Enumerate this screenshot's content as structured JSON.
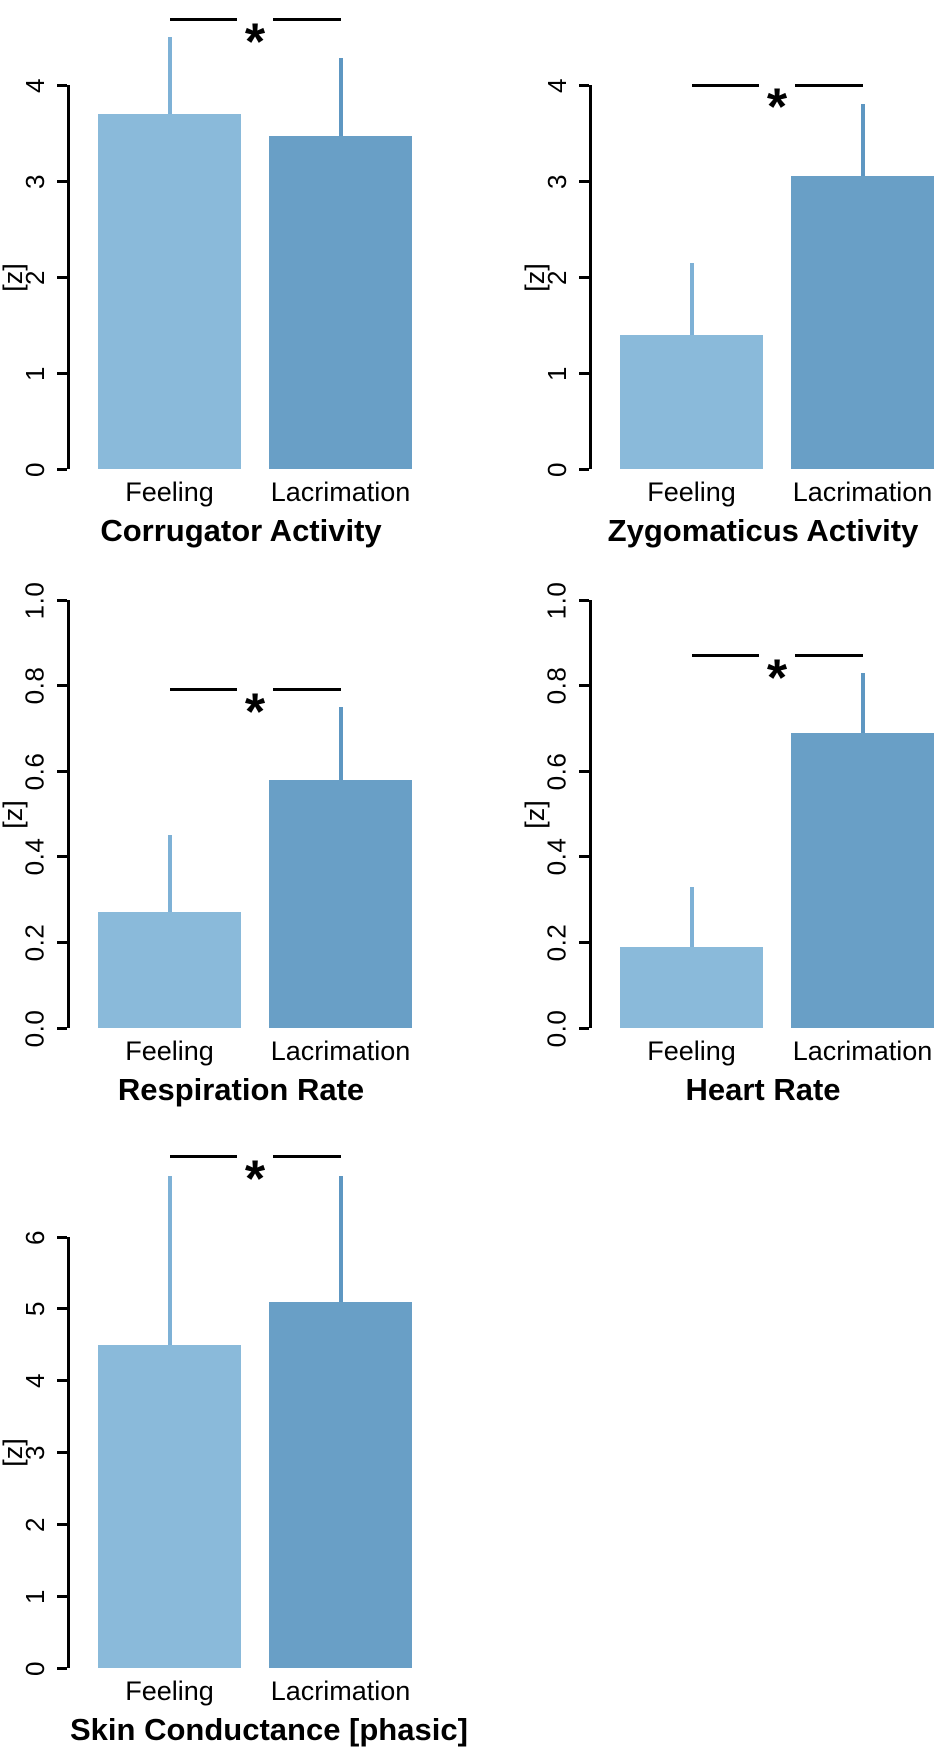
{
  "palette": {
    "feeling_bar": "#8ABADA",
    "lacrimation_bar": "#699FC6",
    "feeling_error": "#7EB1D6",
    "lacrimation_error": "#5E97C2",
    "axis": "#000000"
  },
  "ylabel": "[z]",
  "chart_data": [
    {
      "type": "bar",
      "title": "Corrugator Activity",
      "ylabel": "[z]",
      "categories": [
        "Feeling",
        "Lacrimation"
      ],
      "values": [
        3.7,
        3.47
      ],
      "errors_upper_tip": [
        4.5,
        4.28
      ],
      "ytick_labels": [
        "0",
        "1",
        "2",
        "3",
        "4"
      ],
      "ylim": [
        0,
        4
      ],
      "grid": false,
      "sig_line_y": 4.68,
      "sig_label": "*"
    },
    {
      "type": "bar",
      "title": "Zygomaticus Activity",
      "ylabel": "[z]",
      "categories": [
        "Feeling",
        "Lacrimation"
      ],
      "values": [
        1.4,
        3.05
      ],
      "errors_upper_tip": [
        2.15,
        3.8
      ],
      "ytick_labels": [
        "0",
        "1",
        "2",
        "3",
        "4"
      ],
      "ylim": [
        0,
        4
      ],
      "grid": false,
      "sig_line_y": 4.0,
      "sig_label": "*"
    },
    {
      "type": "bar",
      "title": "Respiration Rate",
      "ylabel": "[z]",
      "categories": [
        "Feeling",
        "Lacrimation"
      ],
      "values": [
        0.27,
        0.58
      ],
      "errors_upper_tip": [
        0.45,
        0.75
      ],
      "ytick_labels": [
        "0.0",
        "0.2",
        "0.4",
        "0.6",
        "0.8",
        "1.0"
      ],
      "ylim": [
        0,
        1
      ],
      "grid": false,
      "sig_line_y": 0.79,
      "sig_label": "*"
    },
    {
      "type": "bar",
      "title": "Heart Rate",
      "ylabel": "[z]",
      "categories": [
        "Feeling",
        "Lacrimation"
      ],
      "values": [
        0.19,
        0.69
      ],
      "errors_upper_tip": [
        0.33,
        0.83
      ],
      "ytick_labels": [
        "0.0",
        "0.2",
        "0.4",
        "0.6",
        "0.8",
        "1.0"
      ],
      "ylim": [
        0,
        1
      ],
      "grid": false,
      "sig_line_y": 0.87,
      "sig_label": "*"
    },
    {
      "type": "bar",
      "title": "Skin Conductance [phasic]",
      "ylabel": "[z]",
      "categories": [
        "Feeling",
        "Lacrimation"
      ],
      "values": [
        4.5,
        5.1
      ],
      "errors_upper_tip": [
        6.85,
        6.85
      ],
      "ytick_labels": [
        "0",
        "1",
        "2",
        "3",
        "4",
        "5",
        "6"
      ],
      "ylim": [
        0,
        6
      ],
      "grid": false,
      "sig_line_y": 7.12,
      "sig_label": "*"
    }
  ]
}
